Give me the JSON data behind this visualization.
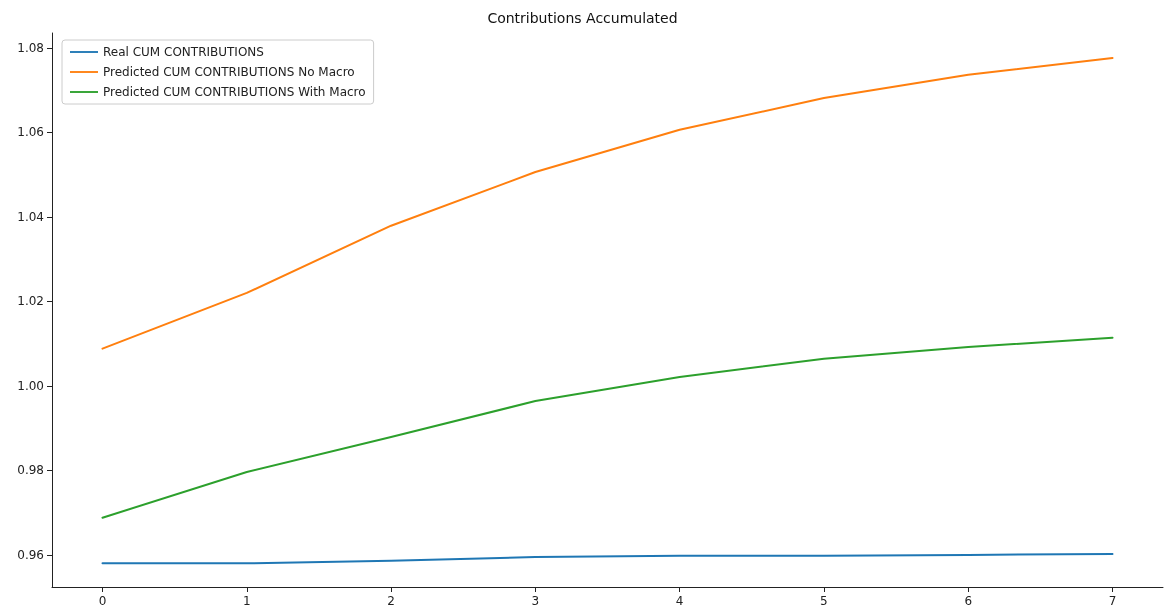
{
  "chart_data": {
    "type": "line",
    "title": "Contributions Accumulated",
    "x": [
      0,
      1,
      2,
      3,
      4,
      5,
      6,
      7
    ],
    "series": [
      {
        "name": "Real CUM CONTRIBUTIONS",
        "color": "#1f77b4",
        "values": [
          0.958,
          0.958,
          0.9586,
          0.9595,
          0.9598,
          0.9598,
          0.96,
          0.9602
        ]
      },
      {
        "name": "Predicted CUM CONTRIBUTIONS No Macro",
        "color": "#ff7f0e",
        "values": [
          1.0088,
          1.022,
          1.0379,
          1.0506,
          1.0606,
          1.0681,
          1.0736,
          1.0776
        ]
      },
      {
        "name": "Predicted CUM CONTRIBUTIONS With Macro",
        "color": "#2ca02c",
        "values": [
          0.9688,
          0.9796,
          0.9879,
          0.9964,
          1.0021,
          1.0064,
          1.0092,
          1.0114
        ]
      }
    ],
    "xlim": [
      -0.35,
      7.35
    ],
    "xticks": [
      0,
      1,
      2,
      3,
      4,
      5,
      6,
      7
    ],
    "ylim": [
      0.9524,
      1.0835
    ],
    "yticks": [
      {
        "value": 0.96,
        "label": "0.96"
      },
      {
        "value": 0.98,
        "label": "0.98"
      },
      {
        "value": 1.0,
        "label": "1.00"
      },
      {
        "value": 1.02,
        "label": "1.02"
      },
      {
        "value": 1.04,
        "label": "1.04"
      },
      {
        "value": 1.06,
        "label": "1.06"
      },
      {
        "value": 1.08,
        "label": "1.08"
      }
    ],
    "grid": false,
    "legend": "top left",
    "marker": "none",
    "line_style": "solid"
  }
}
